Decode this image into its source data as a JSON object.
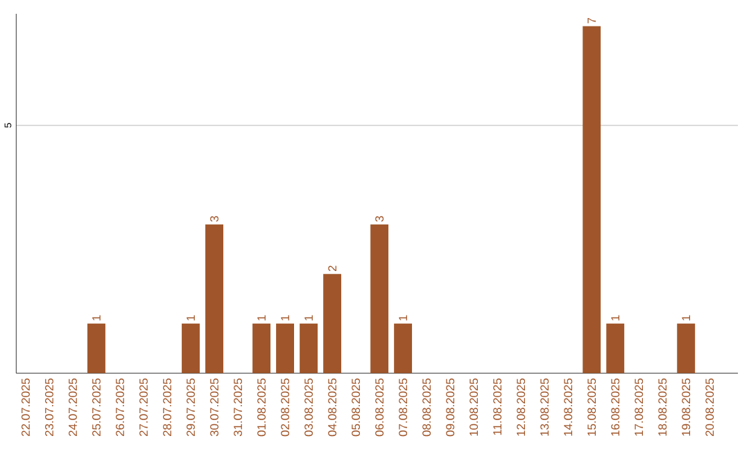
{
  "chart_data": {
    "type": "bar",
    "categories": [
      "22.07.2025",
      "23.07.2025",
      "24.07.2025",
      "25.07.2025",
      "26.07.2025",
      "27.07.2025",
      "28.07.2025",
      "29.07.2025",
      "30.07.2025",
      "31.07.2025",
      "01.08.2025",
      "02.08.2025",
      "03.08.2025",
      "04.08.2025",
      "05.08.2025",
      "06.08.2025",
      "07.08.2025",
      "08.08.2025",
      "09.08.2025",
      "10.08.2025",
      "11.08.2025",
      "12.08.2025",
      "13.08.2025",
      "14.08.2025",
      "15.08.2025",
      "16.08.2025",
      "17.08.2025",
      "18.08.2025",
      "19.08.2025",
      "20.08.2025"
    ],
    "values": [
      0,
      0,
      0,
      1,
      0,
      0,
      0,
      1,
      3,
      0,
      1,
      1,
      1,
      2,
      0,
      3,
      1,
      0,
      0,
      0,
      0,
      0,
      0,
      0,
      7,
      1,
      0,
      0,
      1,
      0
    ],
    "value_labels": [
      null,
      null,
      null,
      "1",
      null,
      null,
      null,
      "1",
      "3",
      null,
      "1",
      "1",
      "1",
      "2",
      null,
      "3",
      "1",
      null,
      null,
      null,
      null,
      null,
      null,
      null,
      "7",
      "1",
      null,
      null,
      "1",
      null
    ],
    "color": "#a0562a",
    "ylim": [
      0,
      7.25
    ],
    "yticks": [
      5
    ],
    "grid": "y"
  }
}
